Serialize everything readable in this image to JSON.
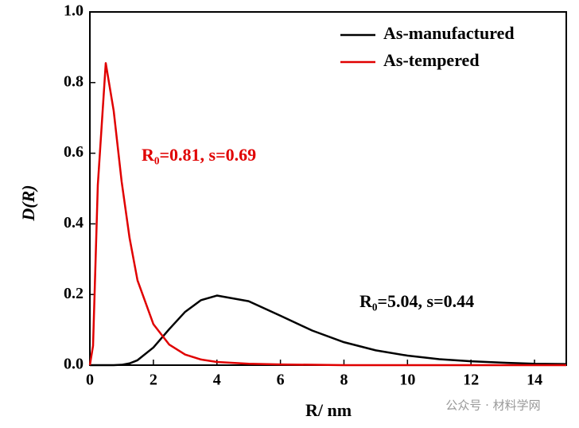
{
  "chart_data": {
    "type": "line",
    "xlabel": "R/ nm",
    "ylabel": "D(R)",
    "x": [
      0,
      0.1,
      0.25,
      0.5,
      0.75,
      1,
      1.25,
      1.5,
      2,
      2.5,
      3,
      3.5,
      4,
      5,
      6,
      7,
      8,
      9,
      10,
      11,
      12,
      13,
      14,
      15
    ],
    "series": [
      {
        "name": "As-manufactured",
        "color": "#000000",
        "values": [
          0,
          0,
          0,
          0,
          0,
          0.001,
          0.005,
          0.014,
          0.05,
          0.102,
          0.151,
          0.184,
          0.197,
          0.181,
          0.14,
          0.098,
          0.065,
          0.042,
          0.027,
          0.017,
          0.011,
          0.007,
          0.004,
          0.003
        ]
      },
      {
        "name": "As-tempered",
        "color": "#e00000",
        "values": [
          0,
          0.055,
          0.51,
          0.855,
          0.72,
          0.52,
          0.36,
          0.24,
          0.116,
          0.058,
          0.03,
          0.016,
          0.009,
          0.004,
          0.002,
          0.001,
          0,
          0,
          0,
          0,
          0,
          0,
          0,
          0
        ]
      }
    ],
    "annotations": [
      {
        "text": "R₀=0.81, s=0.69",
        "color": "#e00000"
      },
      {
        "text": "R₀=5.04, s=0.44",
        "color": "#000000"
      }
    ],
    "watermark": "公众号 · 材料学网",
    "xlim": [
      0,
      15
    ],
    "xticks": [
      0,
      2,
      4,
      6,
      8,
      10,
      12,
      14
    ],
    "ylim": [
      0,
      1
    ],
    "yticks": [
      {
        "value": 0,
        "label": "0.0"
      },
      0.2,
      0.4,
      0.6,
      0.8,
      {
        "value": 1,
        "label": "1.0"
      }
    ],
    "legend": "upper right"
  }
}
